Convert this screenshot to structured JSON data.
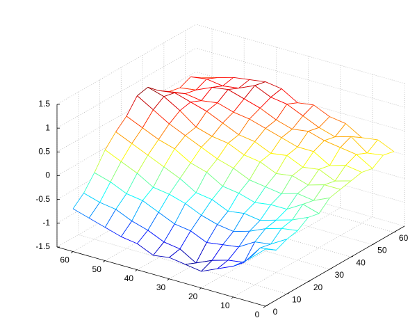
{
  "chart_data": {
    "type": "mesh",
    "colormap": "jet",
    "grid": true,
    "x": [
      0,
      5,
      10,
      15,
      20,
      25,
      30,
      35,
      40,
      45,
      50,
      55,
      60
    ],
    "y": [
      0,
      5,
      10,
      15,
      20,
      25,
      30,
      35,
      40,
      45,
      50,
      55,
      60
    ],
    "z": [
      [
        -0.3,
        -0.45,
        -0.35,
        -0.3,
        -0.15,
        -0.2,
        0.0,
        0.05,
        0.1,
        0.15,
        0.1,
        0.25,
        0.2
      ],
      [
        -0.6,
        -0.5,
        -0.55,
        -0.35,
        -0.3,
        -0.1,
        -0.15,
        0.05,
        0.0,
        0.2,
        0.3,
        0.2,
        0.35
      ],
      [
        -0.85,
        -0.9,
        -0.6,
        -0.45,
        -0.4,
        -0.3,
        -0.1,
        -0.05,
        0.15,
        0.1,
        0.35,
        0.45,
        0.3
      ],
      [
        -1.0,
        -0.95,
        -0.8,
        -0.6,
        -0.5,
        -0.3,
        -0.2,
        0.05,
        0.1,
        0.3,
        0.4,
        0.35,
        0.5
      ],
      [
        -1.15,
        -1.05,
        -0.85,
        -0.7,
        -0.45,
        -0.35,
        -0.15,
        0.0,
        0.25,
        0.3,
        0.5,
        0.45,
        0.55
      ],
      [
        -1.1,
        -1.2,
        -0.9,
        -0.65,
        -0.5,
        -0.25,
        -0.1,
        0.15,
        0.2,
        0.4,
        0.45,
        0.6,
        0.7
      ],
      [
        -1.05,
        -1.0,
        -0.75,
        -0.55,
        -0.35,
        -0.2,
        0.05,
        0.2,
        0.35,
        0.5,
        0.55,
        0.75,
        0.65
      ],
      [
        -1.1,
        -0.95,
        -0.7,
        -0.4,
        -0.3,
        0.0,
        0.15,
        0.35,
        0.4,
        0.6,
        0.7,
        0.8,
        0.85
      ],
      [
        -0.95,
        -0.8,
        -0.55,
        -0.3,
        -0.1,
        0.1,
        0.3,
        0.4,
        0.55,
        0.65,
        0.8,
        0.95,
        0.9
      ],
      [
        -0.9,
        -0.7,
        -0.4,
        -0.25,
        0.05,
        0.3,
        0.45,
        0.5,
        0.7,
        0.75,
        0.9,
        0.8,
        0.85
      ],
      [
        -0.8,
        -0.55,
        -0.35,
        -0.05,
        0.2,
        0.4,
        0.6,
        0.75,
        0.8,
        0.7,
        0.85,
        0.75,
        0.8
      ],
      [
        -0.7,
        -0.5,
        -0.2,
        0.1,
        0.35,
        0.55,
        0.8,
        0.95,
        0.9,
        0.75,
        0.7,
        0.8,
        0.7
      ],
      [
        -0.6,
        -0.4,
        -0.1,
        0.25,
        0.5,
        0.7,
        1.0,
        1.05,
        0.85,
        0.7,
        0.65,
        0.75,
        0.6
      ]
    ],
    "xlim": [
      0,
      65
    ],
    "ylim": [
      0,
      65
    ],
    "zlim": [
      -1.5,
      1.5
    ],
    "xticks": [
      0,
      10,
      20,
      30,
      40,
      50,
      60
    ],
    "yticks": [
      0,
      10,
      20,
      30,
      40,
      50,
      60
    ],
    "zticks": [
      -1.5,
      -1,
      -0.5,
      0,
      0.5,
      1,
      1.5
    ]
  }
}
